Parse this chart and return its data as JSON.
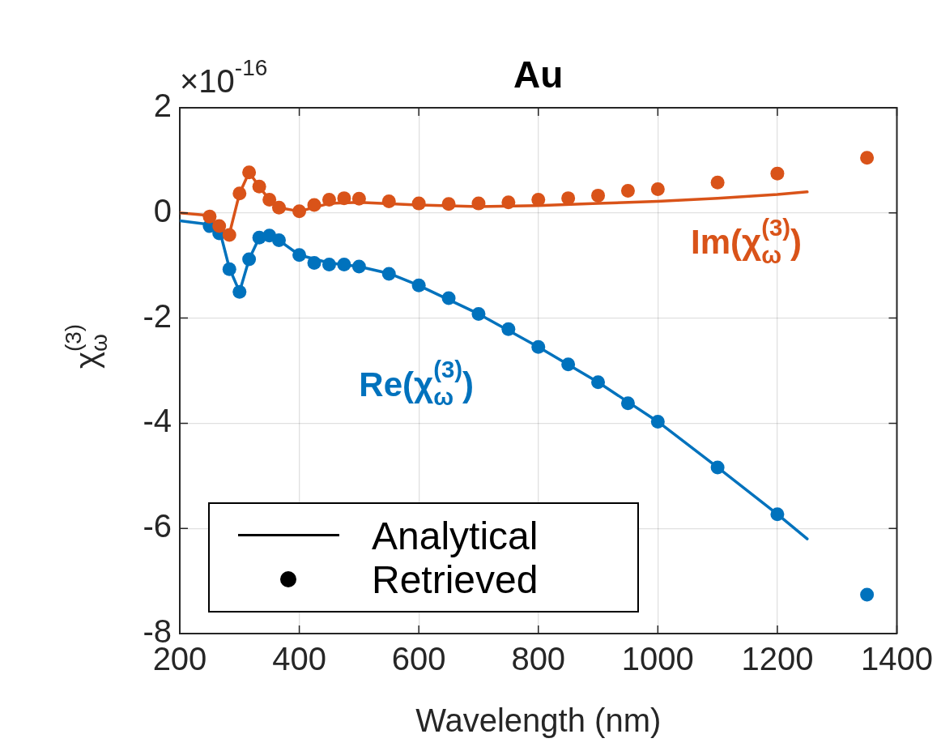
{
  "chart_data": {
    "type": "line",
    "title": "Au",
    "xlabel": "Wavelength (nm)",
    "ylabel": "χ$_{ω}$$^{(3)}$",
    "xlim": [
      200,
      1400
    ],
    "xticks": [
      200,
      400,
      600,
      800,
      1000,
      1200,
      1400
    ],
    "ylim": [
      -8,
      2
    ],
    "yticks": [
      -8,
      -6,
      -4,
      -2,
      0,
      2
    ],
    "grid": true,
    "annotations": [
      "×10$^{-16}$",
      "Re(χ$_{ω}$$^{(3)}$)",
      "Im(χ$_{ω}$$^{(3)}$)",
      "Analytical",
      "Retrieved"
    ],
    "series": [
      {
        "marker": "none",
        "color": "#0072bd",
        "x": [
          200,
          250,
          266,
          283,
          300,
          316,
          333,
          350,
          366,
          400,
          450,
          500,
          550,
          600,
          700,
          800,
          900,
          1000,
          1100,
          1200,
          1250
        ],
        "values": [
          -0.15,
          -0.22,
          -0.3,
          -1.05,
          -1.5,
          -0.88,
          -0.47,
          -0.43,
          -0.52,
          -0.8,
          -0.95,
          -1.02,
          -1.15,
          -1.38,
          -1.92,
          -2.55,
          -3.22,
          -3.97,
          -4.84,
          -5.73,
          -6.2
        ]
      },
      {
        "type": "scatter",
        "marker": "circle",
        "color": "#0072bd",
        "x": [
          250,
          266,
          283,
          300,
          316,
          333,
          350,
          366,
          400,
          425,
          450,
          475,
          500,
          550,
          600,
          650,
          700,
          750,
          800,
          850,
          900,
          950,
          1000,
          1100,
          1200,
          1350
        ],
        "values": [
          -0.25,
          -0.39,
          -1.07,
          -1.5,
          -0.88,
          -0.47,
          -0.43,
          -0.52,
          -0.8,
          -0.95,
          -0.98,
          -0.98,
          -1.02,
          -1.16,
          -1.38,
          -1.62,
          -1.92,
          -2.21,
          -2.55,
          -2.88,
          -3.22,
          -3.62,
          -3.97,
          -4.84,
          -5.73,
          -7.26
        ]
      },
      {
        "marker": "none",
        "color": "#d95319",
        "x": [
          200,
          250,
          266,
          283,
          300,
          316,
          333,
          350,
          366,
          400,
          450,
          500,
          600,
          700,
          800,
          900,
          1000,
          1100,
          1200,
          1250
        ],
        "values": [
          0,
          -0.05,
          -0.3,
          -0.4,
          0.37,
          0.77,
          0.5,
          0.25,
          0.1,
          0.03,
          0.18,
          0.2,
          0.15,
          0.12,
          0.14,
          0.18,
          0.22,
          0.28,
          0.35,
          0.4
        ]
      },
      {
        "type": "scatter",
        "marker": "circle",
        "color": "#d95319",
        "x": [
          250,
          266,
          283,
          300,
          316,
          333,
          350,
          366,
          400,
          425,
          450,
          475,
          500,
          550,
          600,
          650,
          700,
          750,
          800,
          850,
          900,
          950,
          1000,
          1100,
          1200,
          1350
        ],
        "values": [
          -0.07,
          -0.25,
          -0.42,
          0.37,
          0.77,
          0.5,
          0.25,
          0.1,
          0.03,
          0.15,
          0.25,
          0.28,
          0.27,
          0.22,
          0.18,
          0.17,
          0.18,
          0.2,
          0.25,
          0.28,
          0.33,
          0.42,
          0.45,
          0.58,
          0.75,
          1.05
        ]
      }
    ]
  }
}
